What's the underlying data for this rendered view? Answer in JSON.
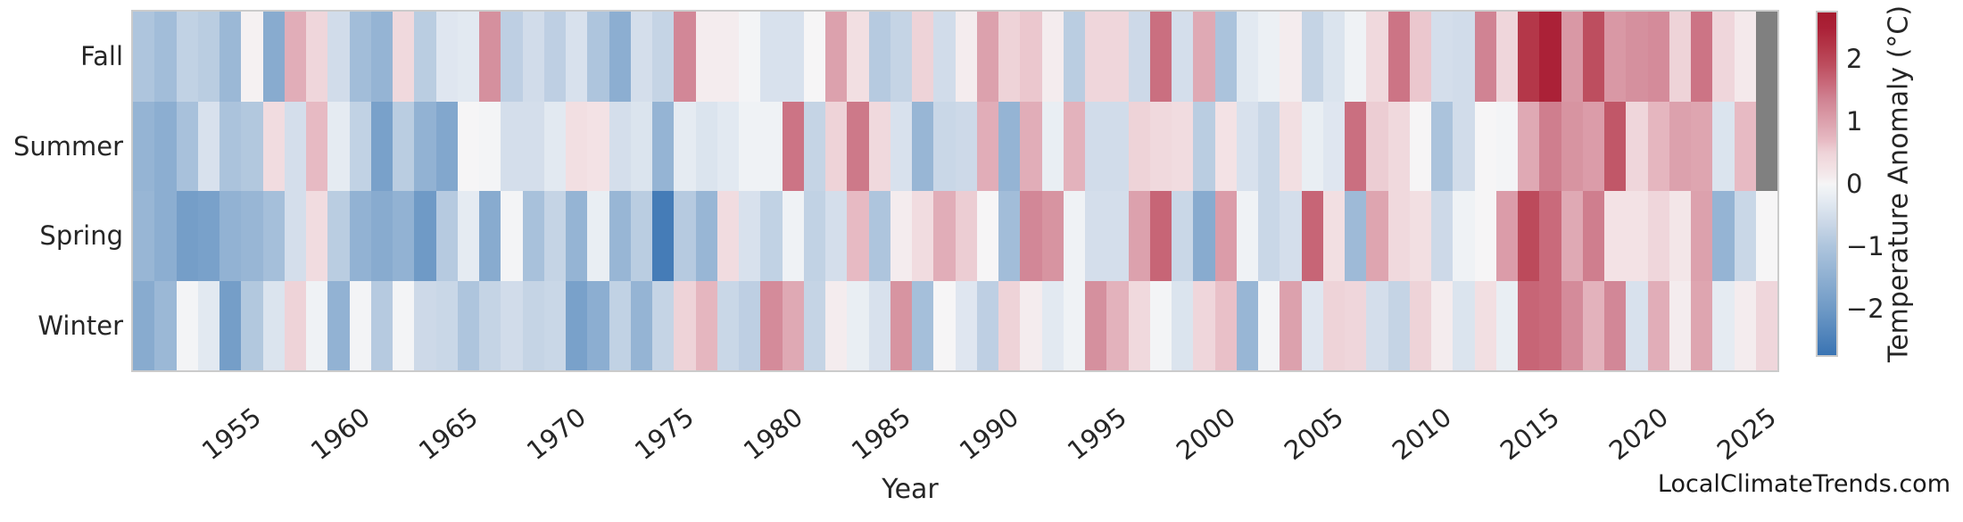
{
  "watermark": "LocalClimateTrends.com",
  "chart_data": {
    "type": "heatmap",
    "title": "",
    "xlabel": "Year",
    "ylabel": "",
    "rows": [
      "Fall",
      "Summer",
      "Spring",
      "Winter"
    ],
    "year_start": 1950,
    "year_end": 2025,
    "x_tick_labels": [
      1955,
      1960,
      1965,
      1970,
      1975,
      1980,
      1985,
      1990,
      1995,
      2000,
      2005,
      2010,
      2015,
      2020,
      2025
    ],
    "missing_color": "#808080",
    "series": [
      {
        "name": "Fall",
        "values": [
          -1.0,
          -1.2,
          -0.75,
          -0.85,
          -1.3,
          0.05,
          -1.6,
          0.85,
          0.45,
          -0.55,
          -1.2,
          -1.4,
          0.4,
          -0.85,
          -0.35,
          -0.3,
          1.2,
          -0.8,
          -0.55,
          -0.8,
          -0.45,
          -1.0,
          -1.55,
          -0.5,
          -0.7,
          1.3,
          0.1,
          0.1,
          -0.05,
          -0.45,
          -0.45,
          0.0,
          1.0,
          0.3,
          -0.9,
          -0.7,
          0.5,
          -0.55,
          0.1,
          1.0,
          0.5,
          0.6,
          0.1,
          -0.85,
          0.45,
          0.45,
          -0.6,
          1.55,
          -0.5,
          0.9,
          -1.05,
          -0.3,
          -0.15,
          0.1,
          -0.7,
          -0.4,
          -0.1,
          0.4,
          1.5,
          0.6,
          -0.5,
          -0.55,
          1.35,
          0.45,
          2.2,
          2.5,
          1.1,
          1.9,
          1.1,
          1.2,
          1.25,
          0.5,
          1.5,
          0.45,
          0.15,
          null
        ]
      },
      {
        "name": "Summer",
        "values": [
          -1.4,
          -1.55,
          -1.1,
          -0.45,
          -1.05,
          -0.95,
          0.35,
          -0.5,
          0.7,
          -0.25,
          -0.75,
          -1.85,
          -0.85,
          -1.45,
          -1.7,
          0.0,
          -0.05,
          -0.5,
          -0.5,
          -0.3,
          0.3,
          0.25,
          -0.5,
          -0.4,
          -1.4,
          -0.25,
          -0.4,
          -0.3,
          -0.1,
          -0.1,
          1.5,
          -0.7,
          0.5,
          1.45,
          0.4,
          -0.45,
          -1.35,
          -0.65,
          -0.6,
          0.85,
          -1.4,
          0.85,
          -0.2,
          0.8,
          -0.55,
          -0.55,
          0.5,
          0.4,
          0.35,
          -0.85,
          0.25,
          -0.45,
          -0.65,
          0.3,
          -0.2,
          -0.35,
          1.55,
          0.55,
          0.4,
          0.0,
          -1.05,
          -0.55,
          0.0,
          -0.05,
          0.9,
          1.4,
          1.15,
          1.05,
          1.8,
          0.45,
          0.75,
          1.0,
          0.95,
          -0.4,
          0.7,
          null
        ]
      },
      {
        "name": "Spring",
        "values": [
          -1.35,
          -1.55,
          -1.9,
          -1.85,
          -1.45,
          -1.35,
          -1.15,
          -0.5,
          0.35,
          -0.85,
          -1.45,
          -1.6,
          -1.45,
          -2.0,
          -0.9,
          -0.25,
          -1.6,
          -0.05,
          -1.1,
          -0.7,
          -1.4,
          -0.2,
          -1.35,
          -0.85,
          -2.6,
          -0.9,
          -1.35,
          0.35,
          -0.45,
          -0.75,
          -0.1,
          -0.75,
          -0.5,
          0.7,
          -1.0,
          0.1,
          0.35,
          0.85,
          0.55,
          0.0,
          -1.2,
          1.3,
          1.15,
          -0.1,
          -0.5,
          -0.5,
          1.0,
          1.65,
          -0.65,
          -1.6,
          1.05,
          -0.1,
          -0.65,
          -0.5,
          1.65,
          0.3,
          -1.25,
          0.95,
          0.4,
          0.3,
          -0.6,
          -0.1,
          0.0,
          1.05,
          1.95,
          1.6,
          0.9,
          1.4,
          0.25,
          0.25,
          0.45,
          0.2,
          1.0,
          -1.4,
          -0.65,
          0.0
        ]
      },
      {
        "name": "Winter",
        "values": [
          -1.6,
          -1.3,
          -0.05,
          -0.3,
          -1.9,
          -0.95,
          -0.4,
          0.5,
          -0.1,
          -1.45,
          -0.05,
          -0.9,
          -0.05,
          -0.6,
          -0.65,
          -1.0,
          -0.7,
          -0.55,
          -0.7,
          -0.65,
          -1.85,
          -1.55,
          -0.75,
          -1.4,
          -0.7,
          0.5,
          0.75,
          -0.65,
          -0.8,
          1.25,
          0.9,
          -0.7,
          0.1,
          -0.2,
          -0.45,
          1.15,
          -1.15,
          0.0,
          -0.35,
          -0.8,
          0.5,
          0.1,
          -0.3,
          -0.1,
          1.2,
          0.8,
          0.4,
          -0.05,
          -0.4,
          0.45,
          0.65,
          -1.35,
          -0.05,
          1.0,
          -0.35,
          0.5,
          0.45,
          -0.5,
          -0.7,
          0.5,
          0.1,
          -0.4,
          0.3,
          -0.2,
          1.65,
          1.6,
          1.25,
          0.8,
          1.3,
          -0.45,
          0.85,
          0.1,
          0.95,
          -0.25,
          0.1,
          0.45
        ]
      }
    ],
    "colorbar": {
      "label": "Temperature Anomaly (°C)",
      "ticks": [
        2,
        1,
        0,
        -1,
        -2
      ],
      "vmin": -2.75,
      "vmax": 2.75,
      "colormap_stops": [
        [
          -2.75,
          "#3a74b3"
        ],
        [
          -2.0,
          "#6f9ac6"
        ],
        [
          -1.4,
          "#95b4d4"
        ],
        [
          -1.0,
          "#aec5dd"
        ],
        [
          -0.6,
          "#cdd9e8"
        ],
        [
          -0.3,
          "#e2e9f1"
        ],
        [
          -0.1,
          "#eff2f5"
        ],
        [
          0.0,
          "#f6f5f6"
        ],
        [
          0.1,
          "#f4ecee"
        ],
        [
          0.3,
          "#f2dfe2"
        ],
        [
          0.5,
          "#eed3d8"
        ],
        [
          0.7,
          "#e7bac3"
        ],
        [
          0.9,
          "#dfa9b4"
        ],
        [
          1.1,
          "#d998a5"
        ],
        [
          1.35,
          "#d08393"
        ],
        [
          1.6,
          "#c96a7b"
        ],
        [
          1.9,
          "#bd4e5f"
        ],
        [
          2.2,
          "#b43749"
        ],
        [
          2.5,
          "#ab2137"
        ],
        [
          2.75,
          "#a51a2e"
        ]
      ]
    }
  }
}
